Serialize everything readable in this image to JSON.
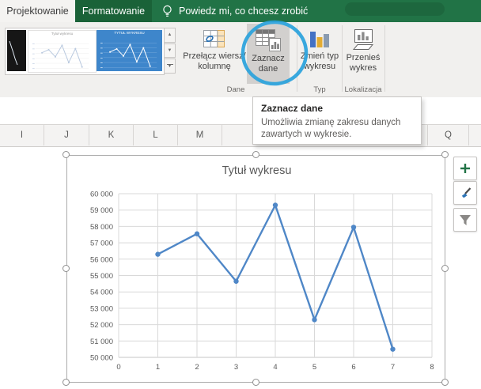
{
  "colors": {
    "excel_green": "#217346",
    "tab_dark_green": "#1a6238",
    "annotation_blue": "#29a2dc",
    "line_blue": "#4f87c7"
  },
  "tabbar": {
    "projektowanie": "Projektowanie",
    "formatowanie": "Formatowanie",
    "tell_me": "Powiedz mi, co chcesz zrobić"
  },
  "ribbon": {
    "gallery_thumb_title": "TYTUŁ WYKRESU",
    "switch_l1": "Przełącz wiersz/",
    "switch_l2": "kolumnę",
    "select_l1": "Zaznacz",
    "select_l2": "dane",
    "change_l1": "Zmień typ",
    "change_l2": "wykresu",
    "move_l1": "Przenieś",
    "move_l2": "wykres",
    "group_dane": "Dane",
    "group_typ": "Typ",
    "group_lok": "Lokalizacja"
  },
  "tooltip": {
    "title": "Zaznacz dane",
    "line1": "Umożliwia zmianę zakresu danych",
    "line2": "zawartych w wykresie."
  },
  "sheet": {
    "col_i": "I",
    "col_j": "J",
    "col_k": "K",
    "col_l": "L",
    "col_m": "M",
    "col_q": "Q"
  },
  "chart_data": {
    "type": "line",
    "title": "Tytuł wykresu",
    "x": [
      1,
      2,
      3,
      4,
      5,
      6,
      7
    ],
    "values": [
      56300,
      57550,
      54650,
      59300,
      52300,
      57950,
      50500
    ],
    "xlim": [
      0,
      8
    ],
    "ylim": [
      50000,
      60000
    ],
    "x_tick_labels": [
      "0",
      "1",
      "2",
      "3",
      "4",
      "5",
      "6",
      "7",
      "8"
    ],
    "y_tick_labels": [
      "60 000",
      "59 000",
      "58 000",
      "57 000",
      "56 000",
      "55 000",
      "54 000",
      "53 000",
      "52 000",
      "51 000",
      "50 000"
    ],
    "grid": true,
    "legend": false,
    "line_color": "#4f87c7",
    "marker": "circle"
  }
}
